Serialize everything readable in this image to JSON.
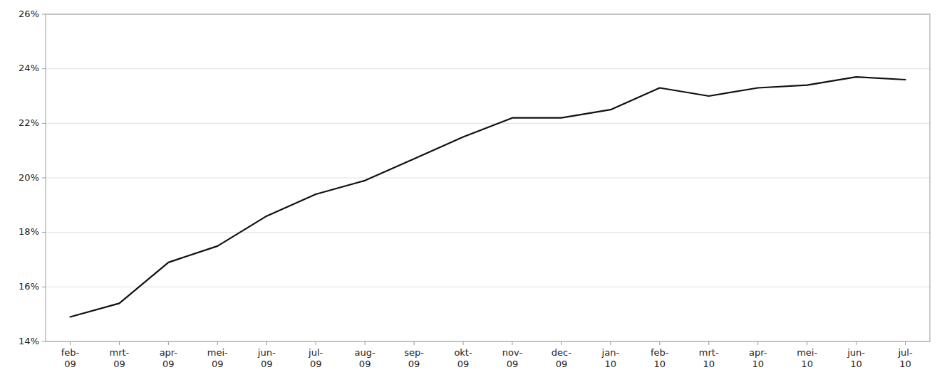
{
  "chart_data": {
    "type": "line",
    "categories": [
      "feb-\n09",
      "mrt-\n09",
      "apr-\n09",
      "mei-\n09",
      "jun-\n09",
      "jul-\n09",
      "aug-\n09",
      "sep-\n09",
      "okt-\n09",
      "nov-\n09",
      "dec-\n09",
      "jan-\n10",
      "feb-\n10",
      "mrt-\n10",
      "apr-\n10",
      "mei-\n10",
      "jun-\n10",
      "jul-\n10"
    ],
    "values": [
      14.9,
      15.4,
      16.9,
      17.5,
      18.6,
      19.4,
      19.9,
      20.7,
      21.5,
      22.2,
      22.2,
      22.5,
      23.3,
      23.0,
      23.3,
      23.4,
      23.7,
      23.6
    ],
    "color": "#111111",
    "ylim": [
      14,
      26
    ],
    "yticks": [
      {
        "value": 14,
        "label": "14%"
      },
      {
        "value": 16,
        "label": "16%"
      },
      {
        "value": 18,
        "label": "18%"
      },
      {
        "value": 20,
        "label": "20%"
      },
      {
        "value": 22,
        "label": "22%"
      },
      {
        "value": 24,
        "label": "24%"
      },
      {
        "value": 26,
        "label": "26%"
      }
    ],
    "grid": true
  }
}
